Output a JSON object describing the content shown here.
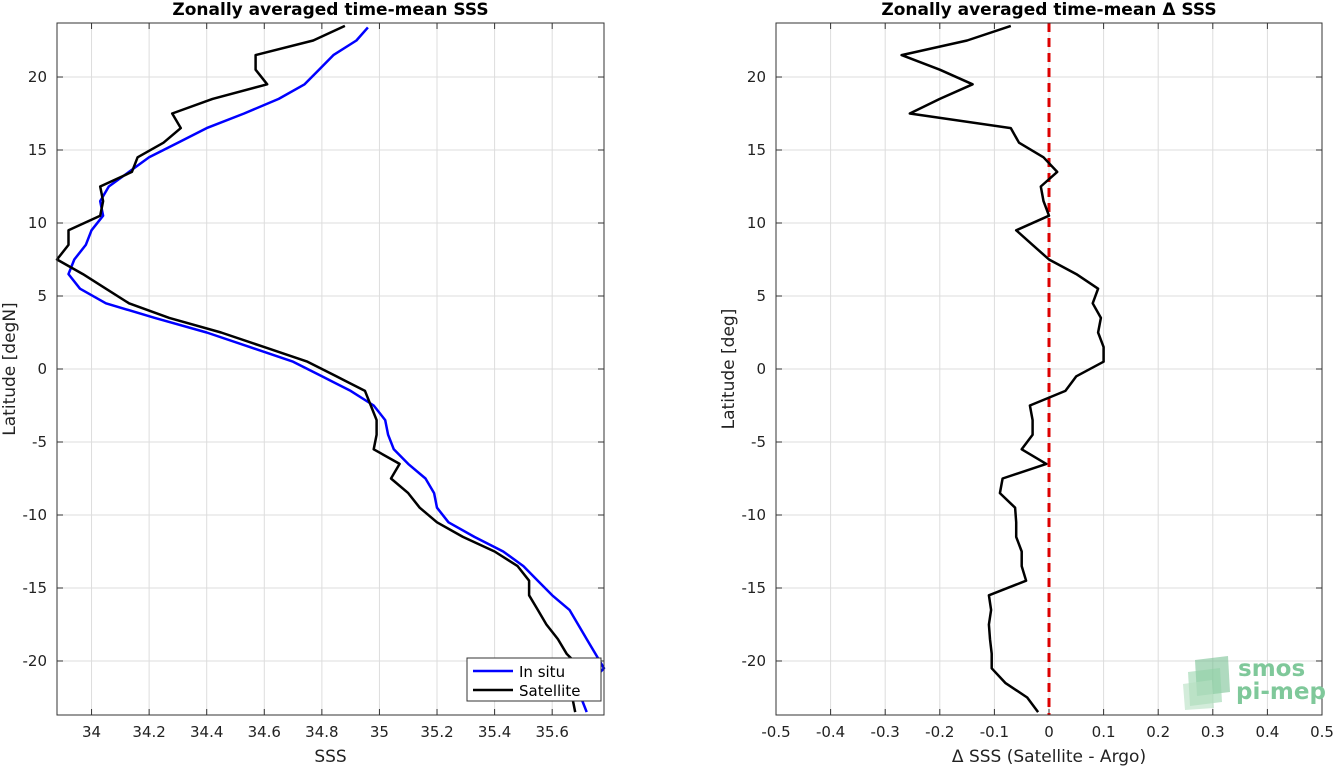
{
  "chart_data": [
    {
      "type": "line",
      "title": "Zonally averaged time-mean SSS",
      "xlabel": "SSS",
      "ylabel": "Latitude [degN]",
      "xlim": [
        33.88,
        35.78
      ],
      "ylim": [
        -23.7,
        23.7
      ],
      "xticks": [
        34,
        34.2,
        34.4,
        34.6,
        34.8,
        35,
        35.2,
        35.4,
        35.6
      ],
      "xtick_labels": [
        "34",
        "34.2",
        "34.4",
        "34.6",
        "34.8",
        "35",
        "35.2",
        "35.4",
        "35.6"
      ],
      "yticks": [
        -20,
        -15,
        -10,
        -5,
        0,
        5,
        10,
        15,
        20
      ],
      "ytick_labels": [
        "-20",
        "-15",
        "-10",
        "-5",
        "0",
        "5",
        "10",
        "15",
        "20"
      ],
      "grid": true,
      "legend_position": "bottom-right",
      "series": [
        {
          "name": "In situ",
          "color": "#0000ff",
          "points": [
            [
              35.72,
              -23.5
            ],
            [
              35.7,
              -22.5
            ],
            [
              35.73,
              -21.5
            ],
            [
              35.78,
              -20.5
            ],
            [
              35.75,
              -19.5
            ],
            [
              35.72,
              -18.5
            ],
            [
              35.69,
              -17.5
            ],
            [
              35.66,
              -16.5
            ],
            [
              35.6,
              -15.5
            ],
            [
              35.55,
              -14.5
            ],
            [
              35.5,
              -13.5
            ],
            [
              35.43,
              -12.5
            ],
            [
              35.33,
              -11.5
            ],
            [
              35.24,
              -10.5
            ],
            [
              35.2,
              -9.5
            ],
            [
              35.19,
              -8.5
            ],
            [
              35.16,
              -7.5
            ],
            [
              35.1,
              -6.5
            ],
            [
              35.05,
              -5.5
            ],
            [
              35.03,
              -4.5
            ],
            [
              35.02,
              -3.5
            ],
            [
              34.98,
              -2.5
            ],
            [
              34.9,
              -1.5
            ],
            [
              34.8,
              -0.5
            ],
            [
              34.7,
              0.5
            ],
            [
              34.55,
              1.5
            ],
            [
              34.4,
              2.5
            ],
            [
              34.22,
              3.5
            ],
            [
              34.05,
              4.5
            ],
            [
              33.96,
              5.5
            ],
            [
              33.92,
              6.5
            ],
            [
              33.94,
              7.5
            ],
            [
              33.98,
              8.5
            ],
            [
              34.0,
              9.5
            ],
            [
              34.04,
              10.5
            ],
            [
              34.03,
              11.5
            ],
            [
              34.06,
              12.5
            ],
            [
              34.13,
              13.5
            ],
            [
              34.2,
              14.5
            ],
            [
              34.3,
              15.5
            ],
            [
              34.4,
              16.5
            ],
            [
              34.53,
              17.5
            ],
            [
              34.65,
              18.5
            ],
            [
              34.74,
              19.5
            ],
            [
              34.79,
              20.5
            ],
            [
              34.84,
              21.5
            ],
            [
              34.92,
              22.5
            ],
            [
              34.96,
              23.4
            ]
          ]
        },
        {
          "name": "Satellite",
          "color": "#000000",
          "points": [
            [
              35.68,
              -23.5
            ],
            [
              35.67,
              -22.5
            ],
            [
              35.75,
              -21.5
            ],
            [
              35.7,
              -20.5
            ],
            [
              35.65,
              -19.5
            ],
            [
              35.62,
              -18.5
            ],
            [
              35.58,
              -17.5
            ],
            [
              35.55,
              -16.5
            ],
            [
              35.52,
              -15.5
            ],
            [
              35.52,
              -14.5
            ],
            [
              35.48,
              -13.5
            ],
            [
              35.4,
              -12.5
            ],
            [
              35.29,
              -11.5
            ],
            [
              35.2,
              -10.5
            ],
            [
              35.14,
              -9.5
            ],
            [
              35.1,
              -8.5
            ],
            [
              35.04,
              -7.5
            ],
            [
              35.07,
              -6.5
            ],
            [
              34.98,
              -5.5
            ],
            [
              34.99,
              -4.5
            ],
            [
              34.99,
              -3.5
            ],
            [
              34.97,
              -2.5
            ],
            [
              34.95,
              -1.5
            ],
            [
              34.85,
              -0.5
            ],
            [
              34.75,
              0.5
            ],
            [
              34.6,
              1.5
            ],
            [
              34.45,
              2.5
            ],
            [
              34.27,
              3.5
            ],
            [
              34.13,
              4.5
            ],
            [
              34.05,
              5.5
            ],
            [
              33.97,
              6.5
            ],
            [
              33.88,
              7.5
            ],
            [
              33.92,
              8.5
            ],
            [
              33.92,
              9.5
            ],
            [
              34.03,
              10.5
            ],
            [
              34.04,
              11.5
            ],
            [
              34.03,
              12.5
            ],
            [
              34.14,
              13.5
            ],
            [
              34.16,
              14.5
            ],
            [
              34.25,
              15.5
            ],
            [
              34.31,
              16.5
            ],
            [
              34.28,
              17.5
            ],
            [
              34.42,
              18.5
            ],
            [
              34.61,
              19.5
            ],
            [
              34.57,
              20.5
            ],
            [
              34.57,
              21.5
            ],
            [
              34.77,
              22.5
            ],
            [
              34.88,
              23.5
            ]
          ]
        }
      ]
    },
    {
      "type": "line",
      "title": "Zonally averaged time-mean Δ SSS",
      "xlabel": "Δ SSS (Satellite - Argo)",
      "ylabel": "Latitude [deg]",
      "xlim": [
        -0.5,
        0.5
      ],
      "ylim": [
        -23.7,
        23.7
      ],
      "xticks": [
        -0.5,
        -0.4,
        -0.3,
        -0.2,
        -0.1,
        0,
        0.1,
        0.2,
        0.3,
        0.4,
        0.5
      ],
      "xtick_labels": [
        "-0.5",
        "-0.4",
        "-0.3",
        "-0.2",
        "-0.1",
        "0",
        "0.1",
        "0.2",
        "0.3",
        "0.4",
        "0.5"
      ],
      "yticks": [
        -20,
        -15,
        -10,
        -5,
        0,
        5,
        10,
        15,
        20
      ],
      "ytick_labels": [
        "-20",
        "-15",
        "-10",
        "-5",
        "0",
        "5",
        "10",
        "15",
        "20"
      ],
      "grid": true,
      "reference_line": {
        "x": 0,
        "color": "#dd0000",
        "style": "dashed"
      },
      "series": [
        {
          "name": "",
          "color": "#000000",
          "points": [
            [
              -0.02,
              -23.5
            ],
            [
              -0.04,
              -22.5
            ],
            [
              -0.08,
              -21.5
            ],
            [
              -0.105,
              -20.5
            ],
            [
              -0.105,
              -19.5
            ],
            [
              -0.108,
              -18.5
            ],
            [
              -0.11,
              -17.5
            ],
            [
              -0.106,
              -16.5
            ],
            [
              -0.11,
              -15.5
            ],
            [
              -0.042,
              -14.5
            ],
            [
              -0.05,
              -13.5
            ],
            [
              -0.05,
              -12.5
            ],
            [
              -0.06,
              -11.5
            ],
            [
              -0.06,
              -10.5
            ],
            [
              -0.062,
              -9.5
            ],
            [
              -0.09,
              -8.5
            ],
            [
              -0.085,
              -7.5
            ],
            [
              -0.005,
              -6.5
            ],
            [
              -0.05,
              -5.5
            ],
            [
              -0.03,
              -4.5
            ],
            [
              -0.03,
              -3.5
            ],
            [
              -0.035,
              -2.5
            ],
            [
              0.03,
              -1.5
            ],
            [
              0.05,
              -0.5
            ],
            [
              0.1,
              0.5
            ],
            [
              0.1,
              1.5
            ],
            [
              0.09,
              2.5
            ],
            [
              0.095,
              3.5
            ],
            [
              0.08,
              4.5
            ],
            [
              0.09,
              5.5
            ],
            [
              0.05,
              6.5
            ],
            [
              0.0,
              7.5
            ],
            [
              -0.03,
              8.5
            ],
            [
              -0.06,
              9.5
            ],
            [
              0.0,
              10.5
            ],
            [
              -0.01,
              11.5
            ],
            [
              -0.015,
              12.5
            ],
            [
              0.015,
              13.5
            ],
            [
              -0.01,
              14.5
            ],
            [
              -0.055,
              15.5
            ],
            [
              -0.07,
              16.5
            ],
            [
              -0.255,
              17.5
            ],
            [
              -0.2,
              18.5
            ],
            [
              -0.14,
              19.5
            ],
            [
              -0.2,
              20.5
            ],
            [
              -0.27,
              21.5
            ],
            [
              -0.15,
              22.5
            ],
            [
              -0.07,
              23.5
            ]
          ]
        }
      ]
    }
  ],
  "legend": {
    "items": [
      "In situ",
      "Satellite"
    ]
  },
  "logo": {
    "line1": "smos",
    "line2": "pi-mep"
  }
}
